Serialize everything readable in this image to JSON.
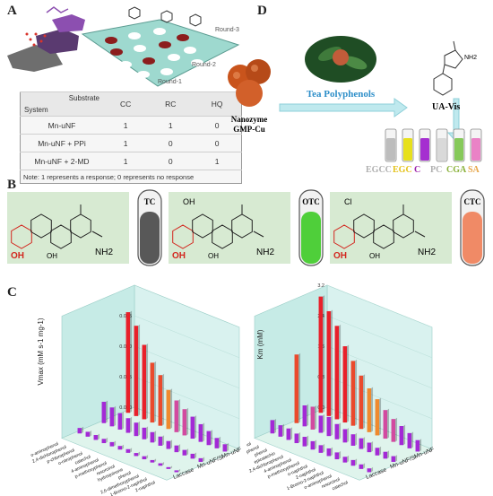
{
  "panels": {
    "a": "A",
    "b": "B",
    "c": "C",
    "d": "D"
  },
  "panel_a": {
    "rounds": [
      "Round-3",
      "Round-2",
      "Round-1"
    ],
    "table": {
      "header_substrate": "Substrate",
      "header_system": "System",
      "columns": [
        "CC",
        "RC",
        "HQ"
      ],
      "rows": [
        {
          "system": "Mn-uNF",
          "values": [
            "1",
            "1",
            "0"
          ]
        },
        {
          "system": "Mn-uNF + PPi",
          "values": [
            "1",
            "0",
            "0"
          ]
        },
        {
          "system": "Mn-uNF + 2-MD",
          "values": [
            "1",
            "0",
            "1"
          ]
        }
      ],
      "note": "Note: 1 represents a response;  0 represents no response"
    }
  },
  "panel_d": {
    "nanozyme": "Nanozyme",
    "nanozyme_name": "GMP-Cu",
    "tea": "Tea Polyphenols",
    "uv": "UA-Vis",
    "amine": "NH2",
    "labels": [
      {
        "text": "EGCC",
        "color": "#b0b0b0"
      },
      {
        "text": "EGC",
        "color": "#e4c21a"
      },
      {
        "text": "C",
        "color": "#9b1fa8"
      },
      {
        "text": "PC",
        "color": "#b0b0b0"
      },
      {
        "text": "CGA",
        "color": "#8ab13a"
      },
      {
        "text": "SA",
        "color": "#e7a64a"
      }
    ],
    "tube_colors": [
      "#bdbdbd",
      "#e7e01c",
      "#a52fd0",
      "#d9d9d9",
      "#86c95a",
      "#ea82c6"
    ]
  },
  "panel_b": {
    "drugs": [
      {
        "tube": "TC",
        "fill": "#585858",
        "sub": "",
        "oh": "OH",
        "nh2": "NH2"
      },
      {
        "tube": "OTC",
        "fill": "#4fcf3a",
        "sub": "OH",
        "oh": "OH",
        "nh2": "NH2"
      },
      {
        "tube": "CTC",
        "fill": "#f08a66",
        "sub": "Cl",
        "oh": "OH",
        "nh2": "NH2"
      }
    ]
  },
  "panel_c": {
    "left": {
      "ylabel": "Vmax (mM s-1 mg-1)",
      "yticks": [
        "0.000",
        "0.005",
        "0.010",
        "0.015"
      ],
      "rows": [
        "Mn-uNF",
        "Mn-uNF/Si",
        "Laccase"
      ],
      "substrates": [
        "o-aminophenol",
        "2,4-dichlorophenol",
        "p-chlorophenol",
        "o-nitrophenol",
        "catechol",
        "4-aminophenol",
        "p-methoxyphenol",
        "resorcinol",
        "hydroquinone",
        "phenol",
        "2,6-dimethoxyphenol",
        "1-Bromo-2-naphthol",
        "2-naphthol"
      ]
    },
    "right": {
      "ylabel": "Km (mM)",
      "yticks": [
        "0.0",
        "0.8",
        "1.6",
        "2.4",
        "3.2"
      ],
      "rows": [
        "Mn-uNF",
        "Mn-uNF/Si",
        "Laccase"
      ],
      "substrates": [
        "p-chlorophenol",
        "2,6-dimethoxyphenol",
        "phenol",
        "epicatechin",
        "2,4-dichlorophenol",
        "4-aminophenol",
        "p-methoxyphenol",
        "o-naphthol",
        "2-naphthol",
        "1-Bromo-2-naphthol",
        "o-aminophenol",
        "resorcinol",
        "catechol"
      ]
    }
  },
  "chart_data": [
    {
      "type": "bar",
      "subtype": "3d-bar",
      "ylabel": "Vmax (mM s-1 mg-1)",
      "ylim": [
        0,
        0.02
      ],
      "categories": [
        "o-aminophenol",
        "2,4-dichlorophenol",
        "p-chlorophenol",
        "o-nitrophenol",
        "catechol",
        "4-aminophenol",
        "p-methoxyphenol",
        "resorcinol",
        "hydroquinone",
        "phenol",
        "2,6-dimethoxyphenol",
        "1-Bromo-2-naphthol",
        "2-naphthol"
      ],
      "series": [
        {
          "name": "Mn-uNF",
          "values": [
            0.0165,
            0.0148,
            0.0122,
            0.0098,
            0.0083,
            0.0064,
            0.0052,
            0.0043,
            0.0036,
            0.0029,
            0.0023,
            0.0017,
            0.0012
          ]
        },
        {
          "name": "Mn-uNF/Si",
          "values": [
            0.0035,
            0.0031,
            0.0027,
            0.0024,
            0.0022,
            0.0019,
            0.0017,
            0.0015,
            0.0013,
            0.0011,
            0.0009,
            0.0008,
            0.0006
          ]
        },
        {
          "name": "Laccase",
          "values": [
            0.0009,
            0.0008,
            0.0008,
            0.0007,
            0.0007,
            0.0006,
            0.0006,
            0.0005,
            0.0005,
            0.0004,
            0.0004,
            0.0003,
            0.0003
          ]
        }
      ]
    },
    {
      "type": "bar",
      "subtype": "3d-bar",
      "ylabel": "Km (mM)",
      "ylim": [
        0,
        3.2
      ],
      "categories": [
        "p-chlorophenol",
        "2,6-dimethoxyphenol",
        "phenol",
        "epicatechin",
        "2,4-dichlorophenol",
        "4-aminophenol",
        "p-methoxyphenol",
        "o-naphthol",
        "2-naphthol",
        "1-Bromo-2-naphthol",
        "o-aminophenol",
        "resorcinol",
        "catechol"
      ],
      "series": [
        {
          "name": "Mn-uNF",
          "values": [
            3.05,
            2.75,
            2.45,
            2.0,
            1.7,
            1.4,
            1.15,
            0.95,
            0.75,
            0.6,
            0.5,
            0.4,
            0.3
          ]
        },
        {
          "name": "Mn-uNF/Si",
          "values": [
            1.8,
            0.55,
            0.6,
            0.45,
            0.5,
            0.4,
            0.35,
            0.3,
            0.28,
            0.25,
            0.2,
            0.18,
            0.15
          ]
        },
        {
          "name": "Laccase",
          "values": [
            0.35,
            0.3,
            0.3,
            0.25,
            0.25,
            0.22,
            0.2,
            0.2,
            0.18,
            0.15,
            0.15,
            0.12,
            0.1
          ]
        }
      ]
    }
  ]
}
